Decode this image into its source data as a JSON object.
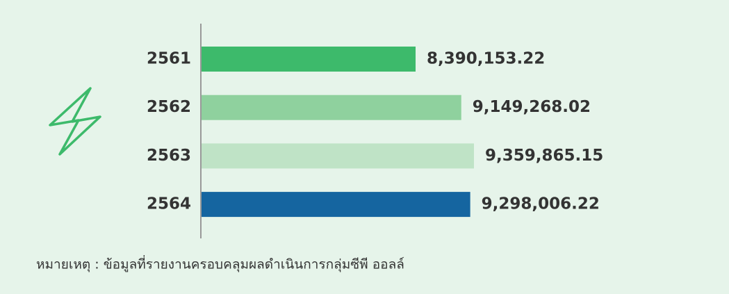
{
  "chart_data": {
    "type": "hbar",
    "categories": [
      "2561",
      "2562",
      "2563",
      "2564"
    ],
    "values": [
      8390153.22,
      9149268.02,
      9359865.15,
      9298006.22
    ],
    "value_labels": [
      "8,390,153.22",
      "9,149,268.02",
      "9,359,865.15",
      "9,298,006.22"
    ],
    "colors": [
      "#3dba6b",
      "#8fd19e",
      "#bfe3c6",
      "#1565a0"
    ],
    "note": "หมายเหตุ : ข้อมูลที่รายงานครอบคลุมผลดำเนินการกลุ่มซีพี ออลล์"
  }
}
